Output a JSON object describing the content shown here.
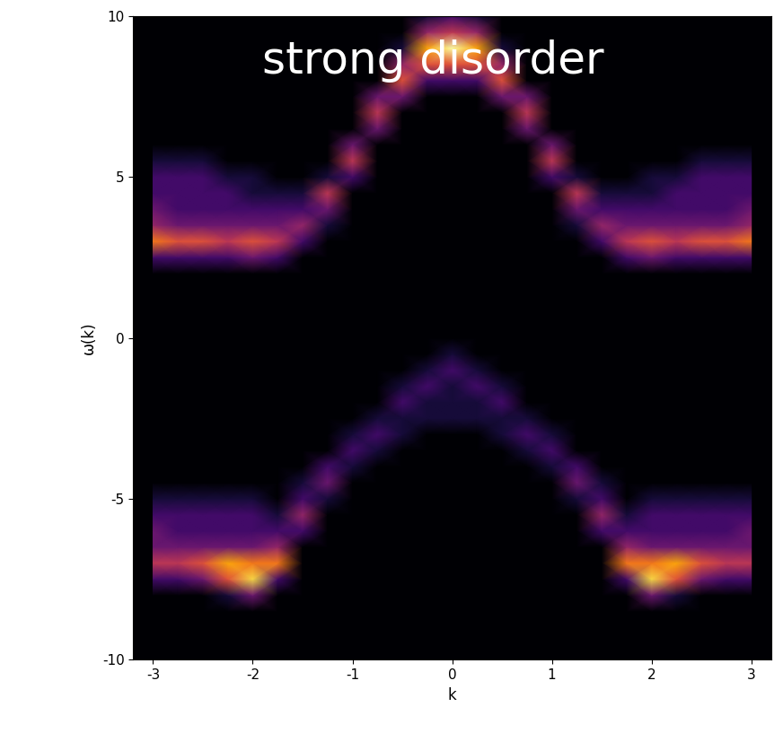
{
  "chart_data": {
    "type": "heatmap",
    "title": "strong disorder",
    "x_label": "k",
    "y_label": "ω(k)",
    "xlim": [
      -3.2,
      3.2
    ],
    "xticks": [
      -3,
      -2,
      -1,
      0,
      1,
      2,
      3
    ],
    "ylim": [
      -10,
      10
    ],
    "yticks": [
      -10,
      -5,
      0,
      5,
      10
    ],
    "color": "inferno",
    "x": [
      -3.0,
      -2.75,
      -2.5,
      -2.25,
      -2.0,
      -1.75,
      -1.5,
      -1.25,
      -1.0,
      -0.75,
      -0.5,
      -0.25,
      0.0,
      0.25,
      0.5,
      0.75,
      1.0,
      1.25,
      1.5,
      1.75,
      2.0,
      2.25,
      2.5,
      2.75,
      3.0
    ],
    "y": [
      -10.0,
      -9.5,
      -9.0,
      -8.5,
      -8.0,
      -7.5,
      -7.0,
      -6.5,
      -6.0,
      -5.5,
      -5.0,
      -4.5,
      -4.0,
      -3.5,
      -3.0,
      -2.5,
      -2.0,
      -1.5,
      -1.0,
      -0.5,
      0.0,
      0.5,
      1.0,
      1.5,
      2.0,
      2.5,
      3.0,
      3.5,
      4.0,
      4.5,
      5.0,
      5.5,
      6.0,
      6.5,
      7.0,
      7.5,
      8.0,
      8.5,
      9.0,
      9.5,
      10.0
    ],
    "cells": [
      [
        0,
        0,
        0,
        0,
        0,
        2,
        5,
        3,
        3,
        2,
        1,
        0,
        0,
        0,
        0,
        0,
        0,
        0,
        0,
        0,
        0,
        0,
        0,
        0,
        0,
        2,
        7,
        4,
        3,
        2,
        2,
        1,
        0,
        0,
        0,
        0,
        0,
        0,
        0,
        0,
        0
      ],
      [
        0,
        0,
        0,
        0,
        0,
        2,
        5,
        3,
        2,
        2,
        1,
        0,
        0,
        0,
        0,
        0,
        0,
        0,
        0,
        0,
        0,
        0,
        0,
        0,
        0,
        2,
        6,
        3,
        2,
        2,
        2,
        1,
        0,
        0,
        0,
        0,
        0,
        0,
        0,
        0,
        0
      ],
      [
        0,
        0,
        0,
        0,
        0,
        3,
        6,
        3,
        2,
        2,
        1,
        0,
        0,
        0,
        0,
        0,
        0,
        0,
        0,
        0,
        0,
        0,
        0,
        0,
        0,
        2,
        6,
        3,
        2,
        2,
        2,
        1,
        0,
        0,
        0,
        0,
        0,
        0,
        0,
        0,
        0
      ],
      [
        0,
        0,
        0,
        0,
        1,
        6,
        8,
        3,
        2,
        2,
        1,
        0,
        0,
        0,
        0,
        0,
        0,
        0,
        0,
        0,
        0,
        0,
        0,
        0,
        0,
        2,
        5,
        3,
        2,
        2,
        1,
        0,
        0,
        0,
        0,
        0,
        0,
        0,
        0,
        0,
        0
      ],
      [
        0,
        0,
        0,
        0,
        3,
        9,
        7,
        3,
        2,
        2,
        1,
        0,
        0,
        0,
        0,
        0,
        0,
        0,
        0,
        0,
        0,
        0,
        0,
        0,
        0,
        3,
        6,
        3,
        2,
        1,
        1,
        0,
        0,
        0,
        0,
        0,
        0,
        0,
        0,
        0,
        0
      ],
      [
        0,
        0,
        0,
        0,
        0,
        2,
        7,
        4,
        2,
        1,
        0,
        0,
        0,
        0,
        0,
        0,
        0,
        0,
        0,
        0,
        0,
        0,
        0,
        0,
        0,
        2,
        5,
        3,
        2,
        1,
        0,
        0,
        0,
        0,
        0,
        0,
        0,
        0,
        0,
        0,
        0
      ],
      [
        0,
        0,
        0,
        0,
        0,
        0,
        0,
        0,
        2,
        4,
        2,
        1,
        0,
        0,
        0,
        0,
        0,
        0,
        0,
        0,
        0,
        0,
        0,
        0,
        0,
        0,
        2,
        4,
        2,
        1,
        0,
        0,
        0,
        0,
        0,
        0,
        0,
        0,
        0,
        0,
        0
      ],
      [
        0,
        0,
        0,
        0,
        0,
        0,
        0,
        0,
        0,
        0,
        1,
        3,
        2,
        0,
        0,
        0,
        0,
        0,
        0,
        0,
        0,
        0,
        0,
        0,
        0,
        0,
        0,
        1,
        3,
        5,
        1,
        0,
        0,
        0,
        0,
        0,
        0,
        0,
        0,
        0,
        0
      ],
      [
        0,
        0,
        0,
        0,
        0,
        0,
        0,
        0,
        0,
        0,
        0,
        0,
        1,
        2,
        1,
        0,
        0,
        0,
        0,
        0,
        0,
        0,
        0,
        0,
        0,
        0,
        0,
        0,
        0,
        0,
        2,
        5,
        3,
        0,
        0,
        0,
        0,
        0,
        0,
        0,
        0
      ],
      [
        0,
        0,
        0,
        0,
        0,
        0,
        0,
        0,
        0,
        0,
        0,
        0,
        0,
        1,
        2,
        1,
        0,
        0,
        0,
        0,
        0,
        0,
        0,
        0,
        0,
        0,
        0,
        0,
        0,
        0,
        0,
        0,
        0,
        3,
        5,
        3,
        0,
        0,
        0,
        0,
        0
      ],
      [
        0,
        0,
        0,
        0,
        0,
        0,
        0,
        0,
        0,
        0,
        0,
        0,
        0,
        0,
        1,
        1,
        2,
        1,
        0,
        0,
        0,
        0,
        0,
        0,
        0,
        0,
        0,
        0,
        0,
        0,
        0,
        0,
        0,
        0,
        0,
        3,
        6,
        4,
        1,
        0,
        0
      ],
      [
        0,
        0,
        0,
        0,
        0,
        0,
        0,
        0,
        0,
        0,
        0,
        0,
        0,
        0,
        0,
        1,
        1,
        2,
        1,
        0,
        0,
        0,
        0,
        0,
        0,
        0,
        0,
        0,
        0,
        0,
        0,
        0,
        0,
        0,
        0,
        0,
        2,
        6,
        8,
        4,
        1
      ],
      [
        0,
        0,
        0,
        0,
        0,
        0,
        0,
        0,
        0,
        0,
        0,
        0,
        0,
        0,
        0,
        1,
        1,
        1,
        2,
        1,
        0,
        0,
        0,
        0,
        0,
        0,
        0,
        0,
        0,
        0,
        0,
        0,
        0,
        0,
        0,
        0,
        2,
        6,
        10,
        5,
        2
      ],
      [
        0,
        0,
        0,
        0,
        0,
        0,
        0,
        0,
        0,
        0,
        0,
        0,
        0,
        0,
        0,
        1,
        1,
        2,
        1,
        0,
        0,
        0,
        0,
        0,
        0,
        0,
        0,
        0,
        0,
        0,
        0,
        0,
        0,
        0,
        0,
        0,
        2,
        6,
        8,
        4,
        1
      ],
      [
        0,
        0,
        0,
        0,
        0,
        0,
        0,
        0,
        0,
        0,
        0,
        0,
        0,
        0,
        1,
        1,
        2,
        1,
        0,
        0,
        0,
        0,
        0,
        0,
        0,
        0,
        0,
        0,
        0,
        0,
        0,
        0,
        0,
        0,
        0,
        3,
        6,
        4,
        1,
        0,
        0
      ],
      [
        0,
        0,
        0,
        0,
        0,
        0,
        0,
        0,
        0,
        0,
        0,
        0,
        0,
        1,
        2,
        1,
        0,
        0,
        0,
        0,
        0,
        0,
        0,
        0,
        0,
        0,
        0,
        0,
        0,
        0,
        0,
        0,
        0,
        3,
        5,
        3,
        0,
        0,
        0,
        0,
        0
      ],
      [
        0,
        0,
        0,
        0,
        0,
        0,
        0,
        0,
        0,
        0,
        0,
        0,
        1,
        2,
        1,
        0,
        0,
        0,
        0,
        0,
        0,
        0,
        0,
        0,
        0,
        0,
        0,
        0,
        0,
        0,
        2,
        5,
        3,
        0,
        0,
        0,
        0,
        0,
        0,
        0,
        0
      ],
      [
        0,
        0,
        0,
        0,
        0,
        0,
        0,
        0,
        0,
        0,
        1,
        3,
        2,
        0,
        0,
        0,
        0,
        0,
        0,
        0,
        0,
        0,
        0,
        0,
        0,
        0,
        0,
        1,
        3,
        5,
        1,
        0,
        0,
        0,
        0,
        0,
        0,
        0,
        0,
        0,
        0
      ],
      [
        0,
        0,
        0,
        0,
        0,
        0,
        0,
        0,
        2,
        4,
        2,
        1,
        0,
        0,
        0,
        0,
        0,
        0,
        0,
        0,
        0,
        0,
        0,
        0,
        0,
        0,
        2,
        4,
        2,
        1,
        0,
        0,
        0,
        0,
        0,
        0,
        0,
        0,
        0,
        0,
        0
      ],
      [
        0,
        0,
        0,
        0,
        0,
        2,
        7,
        4,
        2,
        1,
        0,
        0,
        0,
        0,
        0,
        0,
        0,
        0,
        0,
        0,
        0,
        0,
        0,
        0,
        0,
        2,
        5,
        3,
        2,
        1,
        0,
        0,
        0,
        0,
        0,
        0,
        0,
        0,
        0,
        0,
        0
      ],
      [
        0,
        0,
        0,
        0,
        3,
        9,
        7,
        3,
        2,
        2,
        1,
        0,
        0,
        0,
        0,
        0,
        0,
        0,
        0,
        0,
        0,
        0,
        0,
        0,
        0,
        3,
        6,
        3,
        2,
        1,
        1,
        0,
        0,
        0,
        0,
        0,
        0,
        0,
        0,
        0,
        0
      ],
      [
        0,
        0,
        0,
        0,
        1,
        6,
        8,
        3,
        2,
        2,
        1,
        0,
        0,
        0,
        0,
        0,
        0,
        0,
        0,
        0,
        0,
        0,
        0,
        0,
        0,
        2,
        5,
        3,
        2,
        2,
        1,
        0,
        0,
        0,
        0,
        0,
        0,
        0,
        0,
        0,
        0
      ],
      [
        0,
        0,
        0,
        0,
        0,
        3,
        6,
        3,
        2,
        2,
        1,
        0,
        0,
        0,
        0,
        0,
        0,
        0,
        0,
        0,
        0,
        0,
        0,
        0,
        0,
        2,
        6,
        3,
        2,
        2,
        2,
        1,
        0,
        0,
        0,
        0,
        0,
        0,
        0,
        0,
        0
      ],
      [
        0,
        0,
        0,
        0,
        0,
        2,
        5,
        3,
        2,
        2,
        1,
        0,
        0,
        0,
        0,
        0,
        0,
        0,
        0,
        0,
        0,
        0,
        0,
        0,
        0,
        2,
        6,
        3,
        2,
        2,
        2,
        1,
        0,
        0,
        0,
        0,
        0,
        0,
        0,
        0,
        0
      ],
      [
        0,
        0,
        0,
        0,
        0,
        2,
        5,
        3,
        3,
        2,
        1,
        0,
        0,
        0,
        0,
        0,
        0,
        0,
        0,
        0,
        0,
        0,
        0,
        0,
        0,
        2,
        7,
        4,
        3,
        2,
        2,
        1,
        0,
        0,
        0,
        0,
        0,
        0,
        0,
        0,
        0
      ]
    ]
  }
}
